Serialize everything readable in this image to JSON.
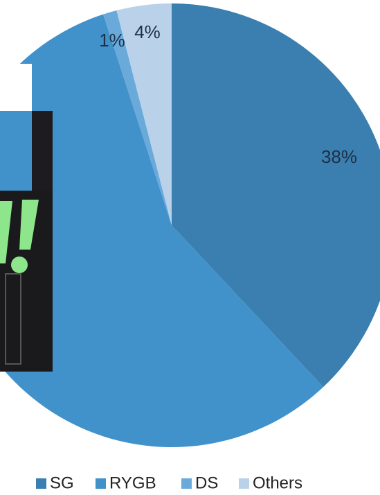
{
  "chart_data": {
    "type": "pie",
    "categories": [
      "SG",
      "RYGB",
      "DS",
      "Others"
    ],
    "values": [
      38,
      57,
      1,
      4
    ],
    "value_labels": [
      "38%",
      null,
      "1%",
      "4%"
    ],
    "colors": [
      "#3b7fb0",
      "#4192cb",
      "#6aaadb",
      "#b9d2ea"
    ]
  }
}
